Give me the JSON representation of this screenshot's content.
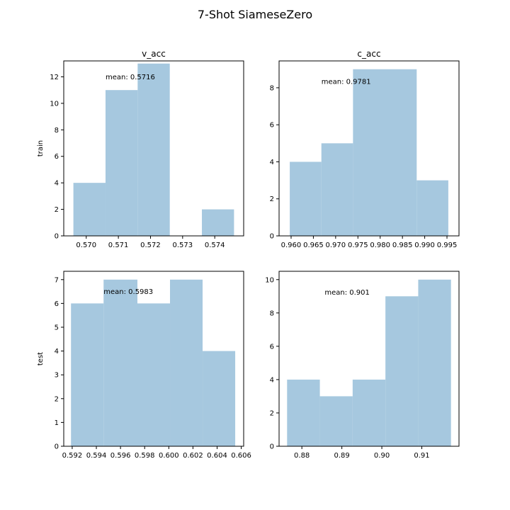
{
  "figure": {
    "title": "7-Shot SiameseZero",
    "row_labels": [
      "train",
      "test"
    ]
  },
  "style": {
    "bar_color": "#a6c8df",
    "axis_color": "#000000"
  },
  "chart_data": [
    {
      "type": "bar",
      "title": "v_acc",
      "ylabel": "train",
      "bin_edges": [
        0.5696,
        0.5706,
        0.5716,
        0.5726,
        0.5736,
        0.5746
      ],
      "counts": [
        4,
        11,
        13,
        0,
        2
      ],
      "xlim": [
        0.5693,
        0.5749
      ],
      "ylim": [
        0,
        13.2
      ],
      "xticks": [
        "0.570",
        "0.571",
        "0.572",
        "0.573",
        "0.574"
      ],
      "xtick_values": [
        0.57,
        0.571,
        0.572,
        0.573,
        0.574
      ],
      "yticks": [
        "0",
        "2",
        "4",
        "6",
        "8",
        "10",
        "12"
      ],
      "ytick_values": [
        0,
        2,
        4,
        6,
        8,
        10,
        12
      ],
      "annotation": {
        "text": "mean: 0.5716",
        "x": 0.5706,
        "y": 11.8
      }
    },
    {
      "type": "bar",
      "title": "c_acc",
      "ylabel": "",
      "bin_edges": [
        0.9597,
        0.9668,
        0.9739,
        0.981,
        0.9882,
        0.9953
      ],
      "counts": [
        4,
        5,
        9,
        9,
        3
      ],
      "xlim": [
        0.9573,
        0.9977
      ],
      "ylim": [
        0,
        9.45
      ],
      "xticks": [
        "0.960",
        "0.965",
        "0.970",
        "0.975",
        "0.980",
        "0.985",
        "0.990",
        "0.995"
      ],
      "xtick_values": [
        0.96,
        0.965,
        0.97,
        0.975,
        0.98,
        0.985,
        0.99,
        0.995
      ],
      "yticks": [
        "0",
        "2",
        "4",
        "6",
        "8"
      ],
      "ytick_values": [
        0,
        2,
        4,
        6,
        8
      ],
      "annotation": {
        "text": "mean: 0.9781",
        "x": 0.9668,
        "y": 8.2
      }
    },
    {
      "type": "bar",
      "title": "",
      "ylabel": "test",
      "bin_edges": [
        0.5919,
        0.5946,
        0.5974,
        0.6001,
        0.6028,
        0.6055
      ],
      "counts": [
        6,
        7,
        6,
        7,
        4
      ],
      "xlim": [
        0.5913,
        0.6062
      ],
      "ylim": [
        0,
        7.35
      ],
      "xticks": [
        "0.592",
        "0.594",
        "0.596",
        "0.598",
        "0.600",
        "0.602",
        "0.604",
        "0.606"
      ],
      "xtick_values": [
        0.592,
        0.594,
        0.596,
        0.598,
        0.6,
        0.602,
        0.604,
        0.606
      ],
      "yticks": [
        "0",
        "1",
        "2",
        "3",
        "4",
        "5",
        "6",
        "7"
      ],
      "ytick_values": [
        0,
        1,
        2,
        3,
        4,
        5,
        6,
        7
      ],
      "annotation": {
        "text": "mean: 0.5983",
        "x": 0.5946,
        "y": 6.4
      }
    },
    {
      "type": "bar",
      "title": "",
      "ylabel": "",
      "bin_edges": [
        0.8763,
        0.8845,
        0.8927,
        0.9009,
        0.9091,
        0.9173
      ],
      "counts": [
        4,
        3,
        4,
        9,
        10
      ],
      "xlim": [
        0.8743,
        0.9193
      ],
      "ylim": [
        0,
        10.5
      ],
      "xticks": [
        "0.88",
        "0.89",
        "0.90",
        "0.91"
      ],
      "xtick_values": [
        0.88,
        0.89,
        0.9,
        0.91
      ],
      "yticks": [
        "0",
        "2",
        "4",
        "6",
        "8",
        "10"
      ],
      "ytick_values": [
        0,
        2,
        4,
        6,
        8,
        10
      ],
      "annotation": {
        "text": "mean: 0.901",
        "x": 0.8857,
        "y": 9.1
      }
    }
  ]
}
